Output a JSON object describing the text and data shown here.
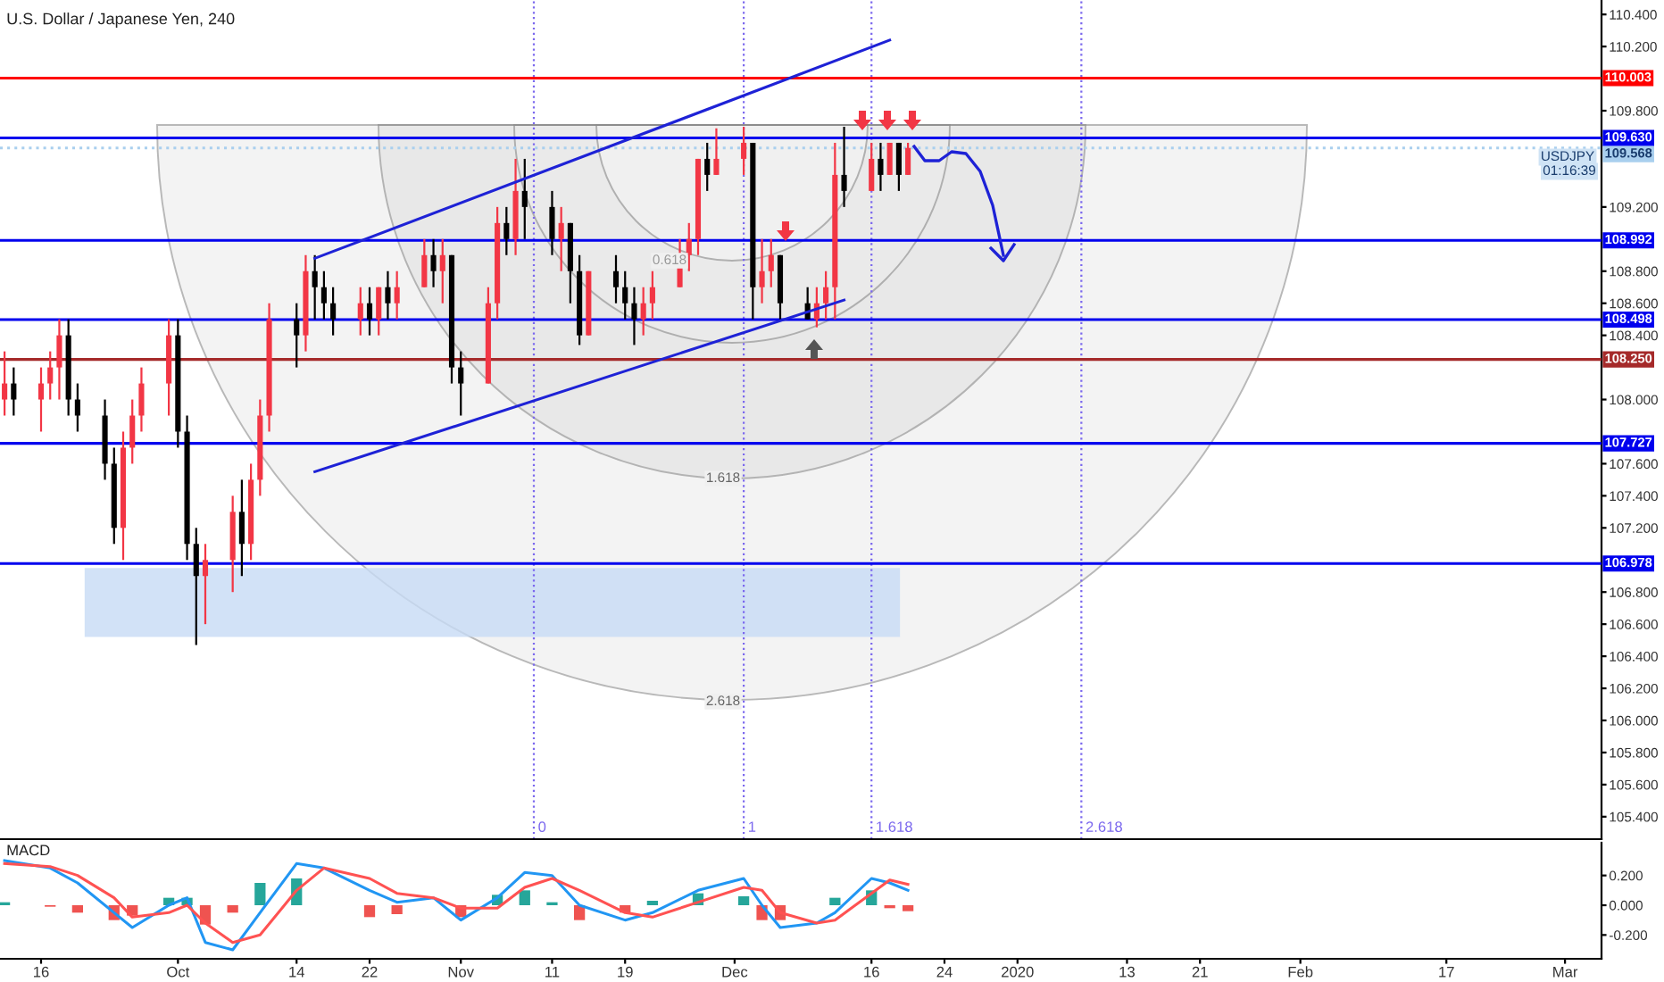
{
  "chart_data": [
    {
      "type": "candlestick",
      "title": "U.S. Dollar / Japanese Yen, 240",
      "x": [
        "2019-09-12",
        "2019-09-13",
        "2019-09-16",
        "2019-09-17",
        "2019-09-18",
        "2019-09-19",
        "2019-09-20",
        "2019-09-23",
        "2019-09-24",
        "2019-09-25",
        "2019-09-26",
        "2019-09-27",
        "2019-09-30",
        "2019-10-01",
        "2019-10-02",
        "2019-10-03",
        "2019-10-04",
        "2019-10-07",
        "2019-10-08",
        "2019-10-09",
        "2019-10-10",
        "2019-10-11",
        "2019-10-14",
        "2019-10-15",
        "2019-10-16",
        "2019-10-17",
        "2019-10-18",
        "2019-10-21",
        "2019-10-22",
        "2019-10-23",
        "2019-10-24",
        "2019-10-25",
        "2019-10-28",
        "2019-10-29",
        "2019-10-30",
        "2019-10-31",
        "2019-11-01",
        "2019-11-04",
        "2019-11-05",
        "2019-11-06",
        "2019-11-07",
        "2019-11-08",
        "2019-11-11",
        "2019-11-12",
        "2019-11-13",
        "2019-11-14",
        "2019-11-15",
        "2019-11-18",
        "2019-11-19",
        "2019-11-20",
        "2019-11-21",
        "2019-11-22",
        "2019-11-25",
        "2019-11-26",
        "2019-11-27",
        "2019-11-28",
        "2019-11-29",
        "2019-12-02",
        "2019-12-03",
        "2019-12-04",
        "2019-12-05",
        "2019-12-06",
        "2019-12-09",
        "2019-12-10",
        "2019-12-11",
        "2019-12-12",
        "2019-12-13",
        "2019-12-16",
        "2019-12-17",
        "2019-12-18",
        "2019-12-19",
        "2019-12-20"
      ],
      "ohlc": [
        [
          108.0,
          108.3,
          107.9,
          108.1
        ],
        [
          108.1,
          108.2,
          107.9,
          108.0
        ],
        [
          108.0,
          108.2,
          107.8,
          108.1
        ],
        [
          108.1,
          108.3,
          108.0,
          108.2
        ],
        [
          108.2,
          108.5,
          108.0,
          108.4
        ],
        [
          108.4,
          108.5,
          107.9,
          108.0
        ],
        [
          108.0,
          108.1,
          107.8,
          107.9
        ],
        [
          107.9,
          108.0,
          107.5,
          107.6
        ],
        [
          107.6,
          107.7,
          107.1,
          107.2
        ],
        [
          107.2,
          107.8,
          107.0,
          107.7
        ],
        [
          107.7,
          108.0,
          107.6,
          107.9
        ],
        [
          107.9,
          108.2,
          107.8,
          108.1
        ],
        [
          108.1,
          108.5,
          107.9,
          108.4
        ],
        [
          108.4,
          108.5,
          107.7,
          107.8
        ],
        [
          107.8,
          107.9,
          107.0,
          107.1
        ],
        [
          107.1,
          107.2,
          106.47,
          106.9
        ],
        [
          106.9,
          107.1,
          106.6,
          107.0
        ],
        [
          107.0,
          107.4,
          106.8,
          107.3
        ],
        [
          107.3,
          107.5,
          106.9,
          107.1
        ],
        [
          107.1,
          107.6,
          107.0,
          107.5
        ],
        [
          107.5,
          108.0,
          107.4,
          107.9
        ],
        [
          107.9,
          108.6,
          107.8,
          108.5
        ],
        [
          108.5,
          108.6,
          108.2,
          108.4
        ],
        [
          108.4,
          108.9,
          108.3,
          108.8
        ],
        [
          108.8,
          108.9,
          108.5,
          108.7
        ],
        [
          108.7,
          108.8,
          108.5,
          108.6
        ],
        [
          108.6,
          108.7,
          108.4,
          108.5
        ],
        [
          108.5,
          108.7,
          108.4,
          108.6
        ],
        [
          108.6,
          108.7,
          108.4,
          108.5
        ],
        [
          108.5,
          108.7,
          108.4,
          108.7
        ],
        [
          108.7,
          108.8,
          108.5,
          108.6
        ],
        [
          108.6,
          108.8,
          108.5,
          108.7
        ],
        [
          108.7,
          109.0,
          108.7,
          108.9
        ],
        [
          108.9,
          109.0,
          108.7,
          108.8
        ],
        [
          108.8,
          109.0,
          108.6,
          108.9
        ],
        [
          108.9,
          108.9,
          108.1,
          108.2
        ],
        [
          108.2,
          108.3,
          107.9,
          108.1
        ],
        [
          108.1,
          108.7,
          108.1,
          108.6
        ],
        [
          108.6,
          109.2,
          108.5,
          109.1
        ],
        [
          109.1,
          109.2,
          108.9,
          109.0
        ],
        [
          109.0,
          109.5,
          108.9,
          109.3
        ],
        [
          109.3,
          109.5,
          109.0,
          109.2
        ],
        [
          109.2,
          109.3,
          108.9,
          109.0
        ],
        [
          109.0,
          109.2,
          108.8,
          109.1
        ],
        [
          109.1,
          109.1,
          108.6,
          108.8
        ],
        [
          108.8,
          108.9,
          108.34,
          108.4
        ],
        [
          108.4,
          108.8,
          108.4,
          108.8
        ],
        [
          108.8,
          108.9,
          108.6,
          108.7
        ],
        [
          108.7,
          108.8,
          108.5,
          108.6
        ],
        [
          108.6,
          108.7,
          108.34,
          108.5
        ],
        [
          108.5,
          108.7,
          108.4,
          108.6
        ],
        [
          108.6,
          108.8,
          108.5,
          108.7
        ],
        [
          108.7,
          109.0,
          108.7,
          108.9
        ],
        [
          108.9,
          109.1,
          108.8,
          109.0
        ],
        [
          109.0,
          109.5,
          108.9,
          109.5
        ],
        [
          109.5,
          109.6,
          109.3,
          109.4
        ],
        [
          109.4,
          109.69,
          109.4,
          109.5
        ],
        [
          109.5,
          109.7,
          109.4,
          109.6
        ],
        [
          109.6,
          109.6,
          108.5,
          108.7
        ],
        [
          108.7,
          109.0,
          108.6,
          108.8
        ],
        [
          108.8,
          109.0,
          108.7,
          108.9
        ],
        [
          108.9,
          108.9,
          108.5,
          108.6
        ],
        [
          108.6,
          108.7,
          108.5,
          108.5
        ],
        [
          108.5,
          108.7,
          108.45,
          108.6
        ],
        [
          108.6,
          108.8,
          108.5,
          108.7
        ],
        [
          108.7,
          109.6,
          108.5,
          109.4
        ],
        [
          109.4,
          109.7,
          109.2,
          109.3
        ],
        [
          109.3,
          109.6,
          109.3,
          109.5
        ],
        [
          109.5,
          109.6,
          109.3,
          109.4
        ],
        [
          109.4,
          109.6,
          109.4,
          109.6
        ],
        [
          109.6,
          109.6,
          109.3,
          109.4
        ],
        [
          109.4,
          109.6,
          109.4,
          109.568
        ]
      ],
      "colors": [
        "#f23645",
        "#000000",
        "#f23645",
        "#f23645",
        "#f23645",
        "#000000",
        "#000000",
        "#000000",
        "#000000",
        "#f23645",
        "#f23645",
        "#f23645",
        "#f23645",
        "#000000",
        "#000000",
        "#000000",
        "#f23645",
        "#f23645",
        "#000000",
        "#f23645",
        "#f23645",
        "#f23645",
        "#000000",
        "#f23645",
        "#000000",
        "#000000",
        "#000000",
        "#f23645",
        "#000000",
        "#f23645",
        "#000000",
        "#f23645",
        "#f23645",
        "#000000",
        "#f23645",
        "#000000",
        "#000000",
        "#f23645",
        "#f23645",
        "#000000",
        "#f23645",
        "#000000",
        "#000000",
        "#f23645",
        "#000000",
        "#000000",
        "#f23645",
        "#000000",
        "#000000",
        "#000000",
        "#f23645",
        "#f23645",
        "#f23645",
        "#f23645",
        "#f23645",
        "#000000",
        "#f23645",
        "#f23645",
        "#000000",
        "#f23645",
        "#f23645",
        "#000000",
        "#000000",
        "#f23645",
        "#f23645",
        "#f23645",
        "#000000",
        "#f23645",
        "#000000",
        "#f23645",
        "#000000",
        "#f23645"
      ],
      "series": [
        {
          "type": "line",
          "color": "#1e22d6",
          "x": [
            "2019-10-16",
            "2019-12-18"
          ],
          "values": [
            108.88,
            110.24
          ]
        },
        {
          "type": "line",
          "color": "#1e22d6",
          "x": [
            "2019-10-16",
            "2019-12-13"
          ],
          "values": [
            107.55,
            108.62
          ]
        }
      ],
      "xlim": [
        "2019-09-11T12:00",
        "2020-03-05"
      ],
      "ylim": [
        105.26,
        110.49
      ],
      "yticks": [
        {
          "value": 110.4,
          "label": "110.400"
        },
        {
          "value": 110.2,
          "label": "110.200"
        },
        {
          "value": 109.8,
          "label": "109.800"
        },
        {
          "value": 109.2,
          "label": "109.200"
        },
        {
          "value": 108.8,
          "label": "108.800"
        },
        {
          "value": 108.6,
          "label": "108.600"
        },
        {
          "value": 108.4,
          "label": "108.400"
        },
        {
          "value": 108.0,
          "label": "108.000"
        },
        {
          "value": 107.6,
          "label": "107.600"
        },
        {
          "value": 107.4,
          "label": "107.400"
        },
        {
          "value": 107.2,
          "label": "107.200"
        },
        {
          "value": 106.8,
          "label": "106.800"
        },
        {
          "value": 106.6,
          "label": "106.600"
        },
        {
          "value": 106.4,
          "label": "106.400"
        },
        {
          "value": 106.2,
          "label": "106.200"
        },
        {
          "value": 106.0,
          "label": "106.000"
        },
        {
          "value": 105.8,
          "label": "105.800"
        },
        {
          "value": 105.6,
          "label": "105.600"
        },
        {
          "value": 105.4,
          "label": "105.400"
        }
      ],
      "tick_labels": "y",
      "ref_lines": [
        {
          "axis": "y",
          "value": 110.003,
          "label": "110.003",
          "color": "#ff0000"
        },
        {
          "axis": "y",
          "value": 109.63,
          "label": "109.630",
          "color": "#0000ee"
        },
        {
          "axis": "y",
          "value": 109.568,
          "label": "109.568",
          "color": "#a9cfee",
          "line_style": "dotted"
        },
        {
          "axis": "y",
          "value": 108.992,
          "label": "108.992",
          "color": "#0000ee"
        },
        {
          "axis": "y",
          "value": 108.498,
          "label": "108.498",
          "color": "#0000ee"
        },
        {
          "axis": "y",
          "value": 108.25,
          "label": "108.250",
          "color": "#a52a2a"
        },
        {
          "axis": "y",
          "value": 107.727,
          "label": "107.727",
          "color": "#0000ee"
        },
        {
          "axis": "y",
          "value": 106.978,
          "label": "106.978",
          "color": "#0000ee"
        },
        {
          "axis": "x",
          "value": "2019-11-09",
          "label": "0",
          "color": "#7b68ee",
          "line_style": "dotted"
        },
        {
          "axis": "x",
          "value": "2019-12-02",
          "label": "1",
          "color": "#7b68ee",
          "line_style": "dotted"
        },
        {
          "axis": "x",
          "value": "2019-12-16",
          "label": "1.618",
          "color": "#7b68ee",
          "line_style": "dotted"
        },
        {
          "axis": "x",
          "value": "2020-01-08",
          "label": "2.618",
          "color": "#7b68ee",
          "line_style": "dotted"
        }
      ],
      "bands": [
        {
          "axis": "y",
          "from": 106.52,
          "to": 106.95,
          "color": "#c7dbf5"
        }
      ],
      "annotations": [
        "USDJPY",
        "01:16:39",
        "0.618",
        "1.618",
        "2.618"
      ]
    },
    {
      "type": "line",
      "title": "MACD",
      "x": [
        "2019-09-12",
        "2019-09-17",
        "2019-09-20",
        "2019-09-24",
        "2019-09-26",
        "2019-09-30",
        "2019-10-02",
        "2019-10-04",
        "2019-10-07",
        "2019-10-10",
        "2019-10-14",
        "2019-10-17",
        "2019-10-22",
        "2019-10-25",
        "2019-10-29",
        "2019-11-01",
        "2019-11-05",
        "2019-11-08",
        "2019-11-11",
        "2019-11-14",
        "2019-11-19",
        "2019-11-22",
        "2019-11-27",
        "2019-12-02",
        "2019-12-04",
        "2019-12-06",
        "2019-12-10",
        "2019-12-12",
        "2019-12-16",
        "2019-12-18",
        "2019-12-20"
      ],
      "series": [
        {
          "type": "bar",
          "colors": [
            "#26a69a",
            "#ef5350",
            "#ef5350",
            "#ef5350",
            "#ef5350",
            "#26a69a",
            "#26a69a",
            "#ef5350",
            "#ef5350",
            "#26a69a",
            "#26a69a",
            "#26a69a",
            "#ef5350",
            "#ef5350",
            "#26a69a",
            "#ef5350",
            "#26a69a",
            "#26a69a",
            "#26a69a",
            "#ef5350",
            "#ef5350",
            "#26a69a",
            "#26a69a",
            "#26a69a",
            "#ef5350",
            "#ef5350",
            "#26a69a",
            "#26a69a",
            "#26a69a",
            "#ef5350",
            "#ef5350"
          ],
          "values": [
            0.02,
            -0.01,
            -0.05,
            -0.1,
            -0.07,
            0.05,
            0.05,
            -0.13,
            -0.05,
            0.15,
            0.18,
            0.0,
            -0.08,
            -0.06,
            0.0,
            -0.08,
            0.07,
            0.1,
            0.02,
            -0.1,
            -0.05,
            0.03,
            0.08,
            0.06,
            -0.1,
            -0.1,
            0.0,
            0.05,
            0.1,
            -0.02,
            -0.04
          ]
        },
        {
          "type": "line",
          "color": "#2196f3",
          "values": [
            0.3,
            0.25,
            0.15,
            -0.05,
            -0.15,
            0.0,
            0.05,
            -0.25,
            -0.3,
            -0.05,
            0.28,
            0.25,
            0.1,
            0.02,
            0.05,
            -0.1,
            0.05,
            0.22,
            0.2,
            0.0,
            -0.1,
            -0.05,
            0.1,
            0.18,
            0.0,
            -0.15,
            -0.12,
            -0.05,
            0.18,
            0.15,
            0.1
          ]
        },
        {
          "type": "line",
          "color": "#ff5252",
          "values": [
            0.28,
            0.26,
            0.2,
            0.05,
            -0.08,
            -0.05,
            0.0,
            -0.12,
            -0.25,
            -0.2,
            0.1,
            0.25,
            0.18,
            0.08,
            0.05,
            -0.02,
            -0.02,
            0.12,
            0.18,
            0.1,
            -0.05,
            -0.08,
            0.02,
            0.12,
            0.1,
            -0.05,
            -0.12,
            -0.1,
            0.08,
            0.17,
            0.14
          ]
        }
      ],
      "xlim": [
        "2019-09-11T12:00",
        "2020-03-05"
      ],
      "xticks": [
        {
          "value": "2019-09-16",
          "label": "16"
        },
        {
          "value": "2019-10-01",
          "label": "Oct"
        },
        {
          "value": "2019-10-14",
          "label": "14"
        },
        {
          "value": "2019-10-22",
          "label": "22"
        },
        {
          "value": "2019-11-01",
          "label": "Nov"
        },
        {
          "value": "2019-11-11",
          "label": "11"
        },
        {
          "value": "2019-11-19",
          "label": "19"
        },
        {
          "value": "2019-12-01",
          "label": "Dec"
        },
        {
          "value": "2019-12-16",
          "label": "16"
        },
        {
          "value": "2019-12-24",
          "label": "24"
        },
        {
          "value": "2020-01-01",
          "label": "2020"
        },
        {
          "value": "2020-01-13",
          "label": "13"
        },
        {
          "value": "2020-01-21",
          "label": "21"
        },
        {
          "value": "2020-02-01",
          "label": "Feb"
        },
        {
          "value": "2020-02-17",
          "label": "17"
        },
        {
          "value": "2020-03-01",
          "label": "Mar"
        }
      ],
      "ylim": [
        -0.36,
        0.42
      ],
      "yticks": [
        {
          "value": 0.2,
          "label": "0.200"
        },
        {
          "value": 0.0,
          "label": "0.000"
        },
        {
          "value": -0.2,
          "label": "-0.200"
        }
      ]
    }
  ]
}
